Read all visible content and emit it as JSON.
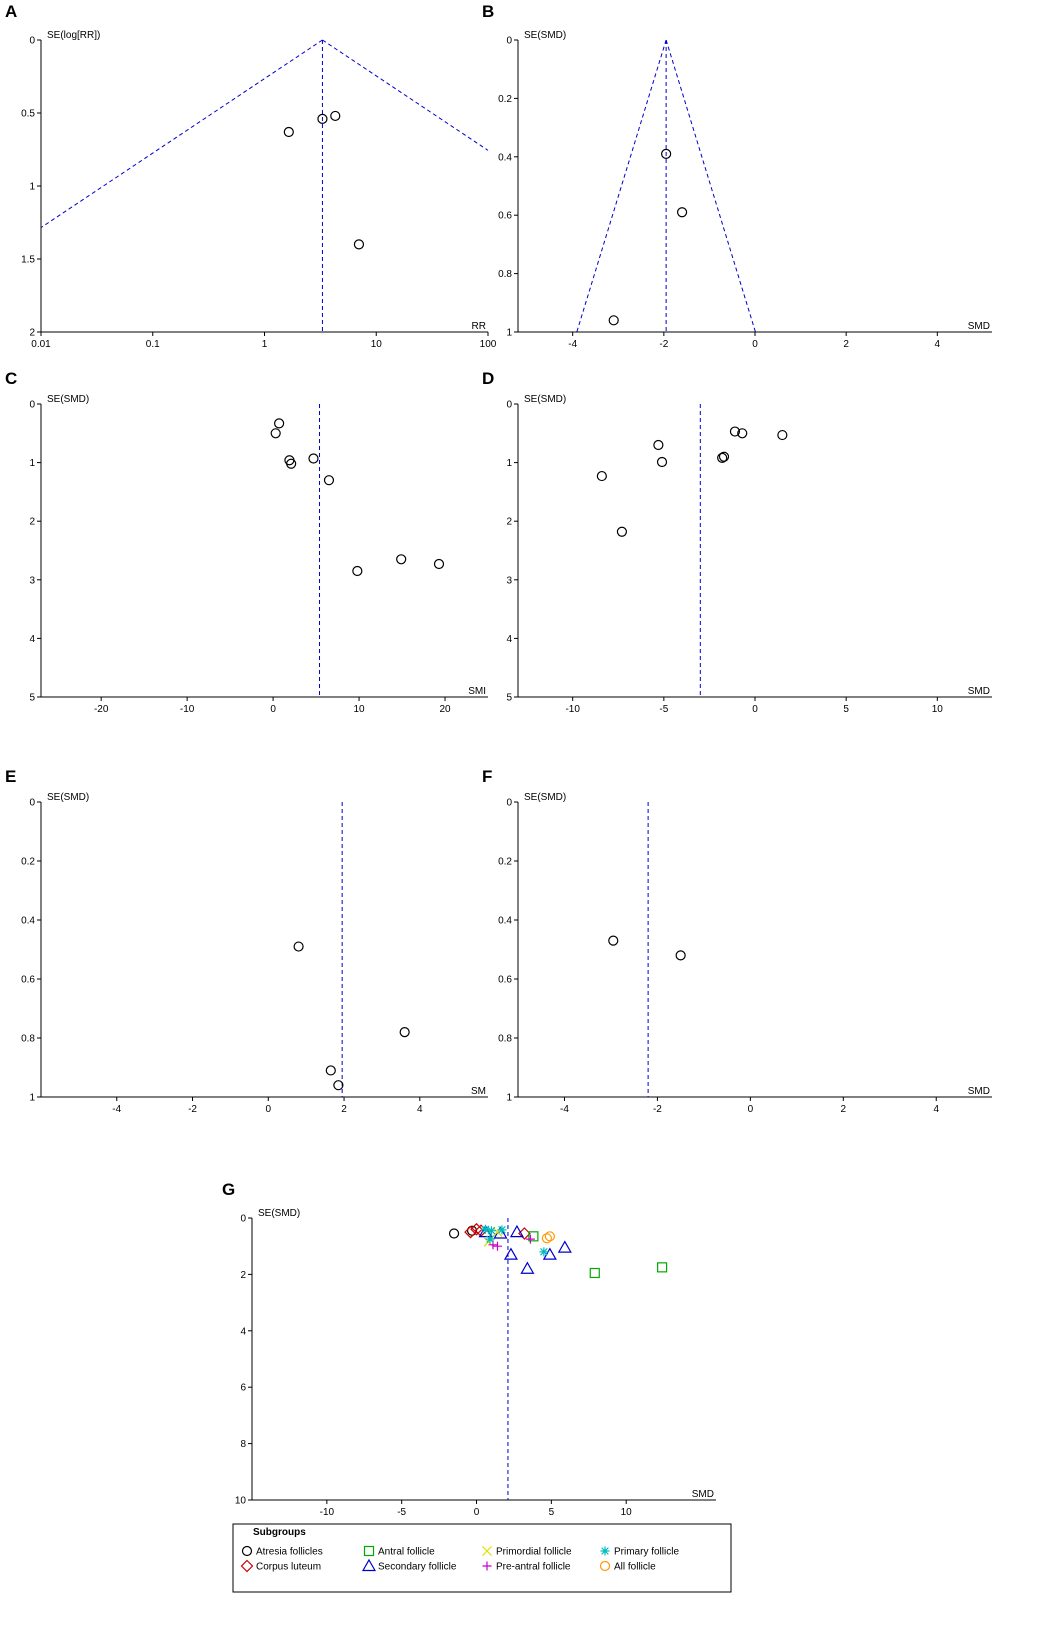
{
  "chart_data": [
    {
      "panel": "A",
      "type": "scatter",
      "xlabel": "RR",
      "ylabel": "SE(log[RR])",
      "xscale": "log",
      "xlim": [
        0.01,
        100
      ],
      "ylim": [
        0,
        2
      ],
      "y_inverted": true,
      "xticks": [
        0.01,
        0.1,
        1,
        10,
        100
      ],
      "xtick_labels": [
        "0.01",
        "0.1",
        "1",
        "10",
        "100"
      ],
      "yticks": [
        0,
        0.5,
        1,
        1.5,
        2
      ],
      "ytick_labels": [
        "0",
        "0.5",
        "1",
        "1.5",
        "2"
      ],
      "pooled": 3.3,
      "funnel": true,
      "points": [
        {
          "x": 1.65,
          "y": 0.63,
          "group": "study"
        },
        {
          "x": 3.3,
          "y": 0.54,
          "group": "study"
        },
        {
          "x": 4.3,
          "y": 0.52,
          "group": "study"
        },
        {
          "x": 7.0,
          "y": 1.4,
          "group": "study"
        }
      ]
    },
    {
      "panel": "B",
      "type": "scatter",
      "xlabel": "SMD",
      "ylabel": "SE(SMD)",
      "xlim": [
        -5.2,
        5.2
      ],
      "ylim": [
        0,
        1
      ],
      "y_inverted": true,
      "xticks": [
        -4,
        -2,
        0,
        2,
        4
      ],
      "xtick_labels": [
        "-4",
        "-2",
        "0",
        "2",
        "4"
      ],
      "yticks": [
        0,
        0.2,
        0.4,
        0.6,
        0.8,
        1
      ],
      "ytick_labels": [
        "0",
        "0.2",
        "0.4",
        "0.6",
        "0.8",
        "1"
      ],
      "pooled": -1.95,
      "funnel": true,
      "points": [
        {
          "x": -1.95,
          "y": 0.39,
          "group": "study"
        },
        {
          "x": -1.6,
          "y": 0.59,
          "group": "study"
        },
        {
          "x": -3.1,
          "y": 0.96,
          "group": "study"
        }
      ]
    },
    {
      "panel": "C",
      "type": "scatter",
      "xlabel": "SMI",
      "ylabel": "SE(SMD)",
      "xlim": [
        -27,
        25
      ],
      "ylim": [
        0,
        5
      ],
      "y_inverted": true,
      "xticks": [
        -20,
        -10,
        0,
        10,
        20
      ],
      "xtick_labels": [
        "-20",
        "-10",
        "0",
        "10",
        "20"
      ],
      "yticks": [
        0,
        1,
        2,
        3,
        4,
        5
      ],
      "ytick_labels": [
        "0",
        "1",
        "2",
        "3",
        "4",
        "5"
      ],
      "pooled": 5.4,
      "funnel": false,
      "points": [
        {
          "x": 0.7,
          "y": 0.33,
          "group": "study"
        },
        {
          "x": 0.3,
          "y": 0.5,
          "group": "study"
        },
        {
          "x": 1.9,
          "y": 0.96,
          "group": "study"
        },
        {
          "x": 2.1,
          "y": 1.02,
          "group": "study"
        },
        {
          "x": 4.7,
          "y": 0.93,
          "group": "study"
        },
        {
          "x": 6.5,
          "y": 1.3,
          "group": "study"
        },
        {
          "x": 9.8,
          "y": 2.85,
          "group": "study"
        },
        {
          "x": 14.9,
          "y": 2.65,
          "group": "study"
        },
        {
          "x": 19.3,
          "y": 2.73,
          "group": "study"
        }
      ]
    },
    {
      "panel": "D",
      "type": "scatter",
      "xlabel": "SMD",
      "ylabel": "SE(SMD)",
      "xlim": [
        -13,
        13
      ],
      "ylim": [
        0,
        5
      ],
      "y_inverted": true,
      "xticks": [
        -10,
        -5,
        0,
        5,
        10
      ],
      "xtick_labels": [
        "-10",
        "-5",
        "0",
        "5",
        "10"
      ],
      "yticks": [
        0,
        1,
        2,
        3,
        4,
        5
      ],
      "ytick_labels": [
        "0",
        "1",
        "2",
        "3",
        "4",
        "5"
      ],
      "pooled": -3.0,
      "funnel": false,
      "points": [
        {
          "x": -8.4,
          "y": 1.23,
          "group": "study"
        },
        {
          "x": -7.3,
          "y": 2.18,
          "group": "study"
        },
        {
          "x": -5.3,
          "y": 0.7,
          "group": "study"
        },
        {
          "x": -5.1,
          "y": 0.99,
          "group": "study"
        },
        {
          "x": -1.8,
          "y": 0.92,
          "group": "study"
        },
        {
          "x": -1.7,
          "y": 0.9,
          "group": "study"
        },
        {
          "x": -1.1,
          "y": 0.47,
          "group": "study"
        },
        {
          "x": -0.7,
          "y": 0.5,
          "group": "study"
        },
        {
          "x": 1.5,
          "y": 0.53,
          "group": "study"
        }
      ]
    },
    {
      "panel": "E",
      "type": "scatter",
      "xlabel": "SM",
      "ylabel": "SE(SMD)",
      "xlim": [
        -6,
        5.8
      ],
      "ylim": [
        0,
        1
      ],
      "y_inverted": true,
      "xticks": [
        -4,
        -2,
        0,
        2,
        4
      ],
      "xtick_labels": [
        "-4",
        "-2",
        "0",
        "2",
        "4"
      ],
      "yticks": [
        0,
        0.2,
        0.4,
        0.6,
        0.8,
        1
      ],
      "ytick_labels": [
        "0",
        "0.2",
        "0.4",
        "0.6",
        "0.8",
        "1"
      ],
      "pooled": 1.95,
      "funnel": false,
      "points": [
        {
          "x": 0.8,
          "y": 0.49,
          "group": "study"
        },
        {
          "x": 1.65,
          "y": 0.91,
          "group": "study"
        },
        {
          "x": 1.85,
          "y": 0.96,
          "group": "study"
        },
        {
          "x": 3.6,
          "y": 0.78,
          "group": "study"
        }
      ]
    },
    {
      "panel": "F",
      "type": "scatter",
      "xlabel": "SMD",
      "ylabel": "SE(SMD)",
      "xlim": [
        -5,
        5.2
      ],
      "ylim": [
        0,
        1
      ],
      "y_inverted": true,
      "xticks": [
        -4,
        -2,
        0,
        2,
        4
      ],
      "xtick_labels": [
        "-4",
        "-2",
        "0",
        "2",
        "4"
      ],
      "yticks": [
        0,
        0.2,
        0.4,
        0.6,
        0.8,
        1
      ],
      "ytick_labels": [
        "0",
        "0.2",
        "0.4",
        "0.6",
        "0.8",
        "1"
      ],
      "pooled": -2.2,
      "funnel": false,
      "points": [
        {
          "x": -2.95,
          "y": 0.47,
          "group": "study"
        },
        {
          "x": -1.5,
          "y": 0.52,
          "group": "study"
        }
      ]
    },
    {
      "panel": "G",
      "type": "scatter",
      "xlabel": "SMD",
      "ylabel": "SE(SMD)",
      "xlim": [
        -15,
        16
      ],
      "ylim": [
        0,
        10
      ],
      "y_inverted": true,
      "xticks": [
        -10,
        -5,
        0,
        5,
        10
      ],
      "xtick_labels": [
        "-10",
        "-5",
        "0",
        "5",
        "10"
      ],
      "yticks": [
        0,
        2,
        4,
        6,
        8,
        10
      ],
      "ytick_labels": [
        "0",
        "2",
        "4",
        "6",
        "8",
        "10"
      ],
      "pooled": 2.1,
      "funnel": false,
      "legend": {
        "title": "Subgroups",
        "position": "bottom",
        "entries": [
          {
            "group": "atresia",
            "label": "Atresia follicles"
          },
          {
            "group": "antral",
            "label": "Antral follicle"
          },
          {
            "group": "primordial",
            "label": "Primordial follicle"
          },
          {
            "group": "primary",
            "label": "Primary follicle"
          },
          {
            "group": "corpus",
            "label": "Corpus luteum"
          },
          {
            "group": "secondary",
            "label": "Secondary follicle"
          },
          {
            "group": "preantral",
            "label": "Pre-antral follicle"
          },
          {
            "group": "all",
            "label": "All follicle"
          }
        ]
      },
      "points": [
        {
          "x": -1.5,
          "y": 0.55,
          "group": "atresia"
        },
        {
          "x": -0.3,
          "y": 0.45,
          "group": "atresia"
        },
        {
          "x": -0.4,
          "y": 0.5,
          "group": "corpus"
        },
        {
          "x": 0.0,
          "y": 0.4,
          "group": "corpus"
        },
        {
          "x": 0.3,
          "y": 0.45,
          "group": "corpus"
        },
        {
          "x": 3.2,
          "y": 0.55,
          "group": "corpus"
        },
        {
          "x": 3.8,
          "y": 0.65,
          "group": "antral"
        },
        {
          "x": 7.9,
          "y": 1.95,
          "group": "antral"
        },
        {
          "x": 12.4,
          "y": 1.75,
          "group": "antral"
        },
        {
          "x": 0.6,
          "y": 0.5,
          "group": "secondary"
        },
        {
          "x": 1.6,
          "y": 0.55,
          "group": "secondary"
        },
        {
          "x": 2.3,
          "y": 1.3,
          "group": "secondary"
        },
        {
          "x": 2.7,
          "y": 0.5,
          "group": "secondary"
        },
        {
          "x": 3.4,
          "y": 1.8,
          "group": "secondary"
        },
        {
          "x": 4.9,
          "y": 1.3,
          "group": "secondary"
        },
        {
          "x": 5.9,
          "y": 1.05,
          "group": "secondary"
        },
        {
          "x": 0.8,
          "y": 0.85,
          "group": "primordial"
        },
        {
          "x": 1.4,
          "y": 0.5,
          "group": "primordial"
        },
        {
          "x": 1.1,
          "y": 0.95,
          "group": "preantral"
        },
        {
          "x": 1.4,
          "y": 1.0,
          "group": "preantral"
        },
        {
          "x": 3.6,
          "y": 0.75,
          "group": "preantral"
        },
        {
          "x": 0.6,
          "y": 0.4,
          "group": "primary"
        },
        {
          "x": 1.0,
          "y": 0.45,
          "group": "primary"
        },
        {
          "x": 1.7,
          "y": 0.42,
          "group": "primary"
        },
        {
          "x": 0.9,
          "y": 0.75,
          "group": "primary"
        },
        {
          "x": 4.5,
          "y": 1.2,
          "group": "primary"
        },
        {
          "x": 4.7,
          "y": 0.72,
          "group": "all"
        },
        {
          "x": 4.9,
          "y": 0.65,
          "group": "all"
        }
      ]
    }
  ],
  "styles": {
    "funnel_color": "#0000cc",
    "axis_color": "#000000",
    "groups": {
      "study": {
        "shape": "circle",
        "color": "#000000"
      },
      "atresia": {
        "shape": "circle",
        "color": "#000000"
      },
      "corpus": {
        "shape": "diamond",
        "color": "#cc0000"
      },
      "antral": {
        "shape": "square",
        "color": "#00aa00"
      },
      "secondary": {
        "shape": "triangle",
        "color": "#0000cc"
      },
      "primordial": {
        "shape": "x",
        "color": "#dddd00"
      },
      "preantral": {
        "shape": "plus",
        "color": "#cc00cc"
      },
      "primary": {
        "shape": "asterisk",
        "color": "#00bbbb"
      },
      "all": {
        "shape": "circle",
        "color": "#ff9900"
      }
    }
  }
}
